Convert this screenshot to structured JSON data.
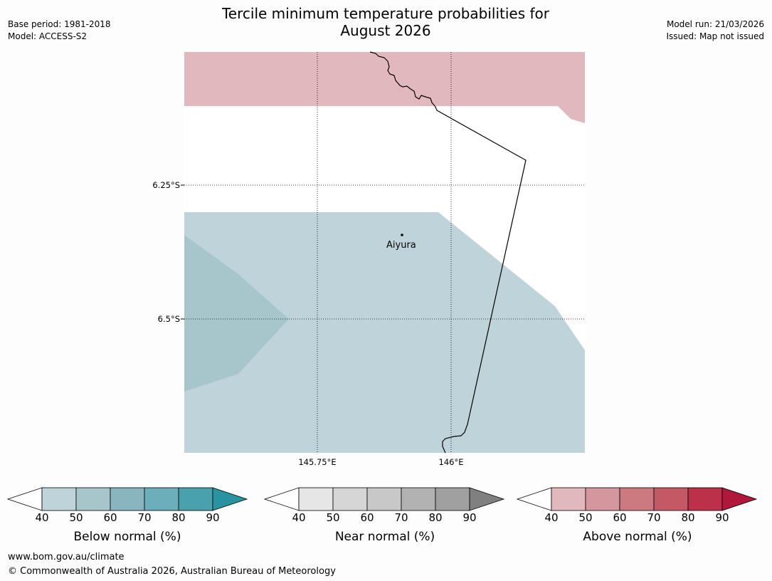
{
  "header": {
    "title_line1": "Tercile minimum temperature probabilities for",
    "title_line2": "August 2026",
    "base_period": "Base period: 1981-2018",
    "model": "Model: ACCESS-S2",
    "model_run": "Model run: 21/03/2026",
    "issued": "Issued: Map not issued"
  },
  "map": {
    "lat_labels": [
      "6.25°S",
      "6.5°S"
    ],
    "lon_labels": [
      "145.75°E",
      "146°E"
    ],
    "place": "Aiyura",
    "colors": {
      "above_40_50": "#e0b8bd",
      "below_40_50": "#bfd4da",
      "below_50_60": "#a7c6cb",
      "border": "#000000"
    }
  },
  "legends": [
    {
      "title": "Below normal (%)",
      "ticks": [
        "40",
        "50",
        "60",
        "70",
        "80",
        "90"
      ],
      "colors": [
        "#bfd4da",
        "#a7c6cb",
        "#89b6be",
        "#6caeb9",
        "#4aa1ae",
        "#2a93a1"
      ]
    },
    {
      "title": "Near normal (%)",
      "ticks": [
        "40",
        "50",
        "60",
        "70",
        "80",
        "90"
      ],
      "colors": [
        "#e6e6e6",
        "#d6d6d6",
        "#c8c8c8",
        "#b2b2b2",
        "#a0a0a0",
        "#808080"
      ]
    },
    {
      "title": "Above normal (%)",
      "ticks": [
        "40",
        "50",
        "60",
        "70",
        "80",
        "90"
      ],
      "colors": [
        "#e0b8bd",
        "#d5979e",
        "#cd7980",
        "#c45965",
        "#bc3049",
        "#b1173a"
      ]
    }
  ],
  "footer": {
    "url": "www.bom.gov.au/climate",
    "copyright": "© Commonwealth of Australia 2026, Australian Bureau of Meteorology"
  }
}
